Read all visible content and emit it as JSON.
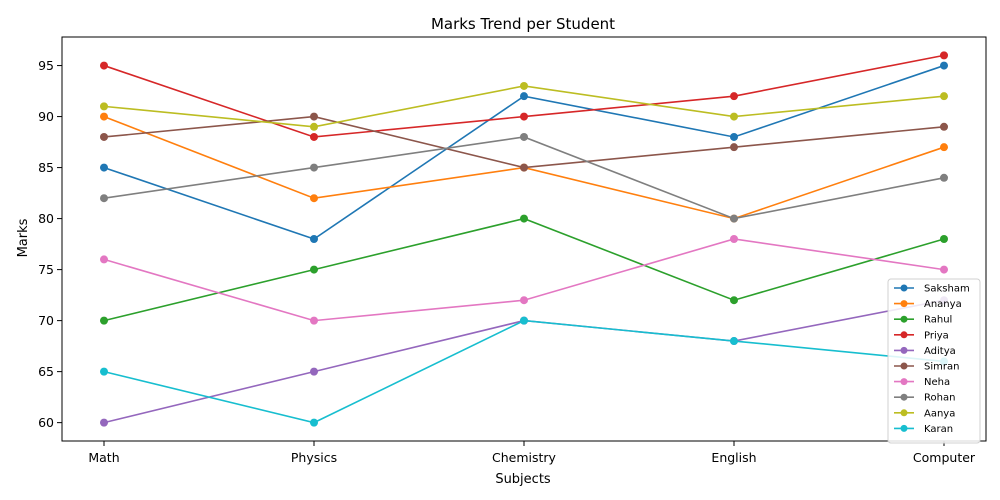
{
  "chart_data": {
    "type": "line",
    "title": "Marks Trend per Student",
    "xlabel": "Subjects",
    "ylabel": "Marks",
    "categories": [
      "Math",
      "Physics",
      "Chemistry",
      "English",
      "Computer"
    ],
    "ylim": [
      58.2,
      97.8
    ],
    "yticks": [
      60,
      65,
      70,
      75,
      80,
      85,
      90,
      95
    ],
    "grid": false,
    "legend_position": "lower-right",
    "series": [
      {
        "name": "Saksham",
        "color": "#1f77b4",
        "values": [
          85,
          78,
          92,
          88,
          95
        ]
      },
      {
        "name": "Ananya",
        "color": "#ff7f0e",
        "values": [
          90,
          82,
          85,
          80,
          87
        ]
      },
      {
        "name": "Rahul",
        "color": "#2ca02c",
        "values": [
          70,
          75,
          80,
          72,
          78
        ]
      },
      {
        "name": "Priya",
        "color": "#d62728",
        "values": [
          95,
          88,
          90,
          92,
          96
        ]
      },
      {
        "name": "Aditya",
        "color": "#9467bd",
        "values": [
          60,
          65,
          70,
          68,
          72
        ]
      },
      {
        "name": "Simran",
        "color": "#8c564b",
        "values": [
          88,
          90,
          85,
          87,
          89
        ]
      },
      {
        "name": "Neha",
        "color": "#e377c2",
        "values": [
          76,
          70,
          72,
          78,
          75
        ]
      },
      {
        "name": "Rohan",
        "color": "#7f7f7f",
        "values": [
          82,
          85,
          88,
          80,
          84
        ]
      },
      {
        "name": "Aanya",
        "color": "#bcbd22",
        "values": [
          91,
          89,
          93,
          90,
          92
        ]
      },
      {
        "name": "Karan",
        "color": "#17becf",
        "values": [
          65,
          60,
          70,
          68,
          66
        ]
      }
    ]
  }
}
